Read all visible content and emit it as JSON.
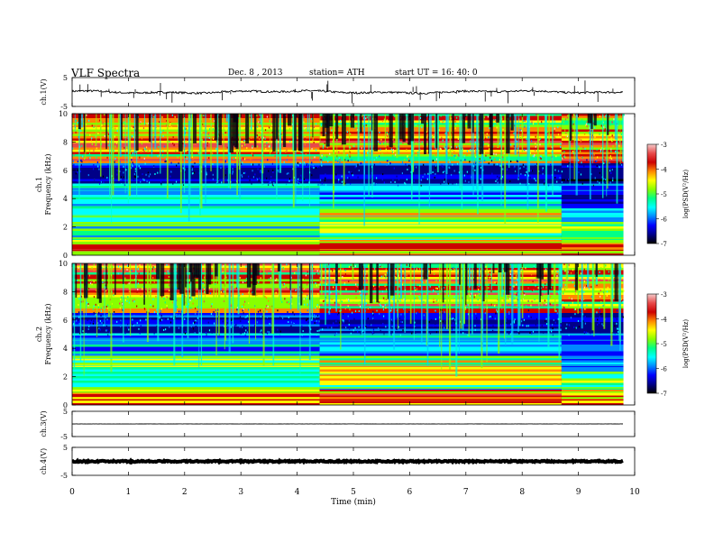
{
  "header": {
    "title": "VLF  Spectra",
    "date": "Dec. 8  , 2013",
    "station": "station= ATH",
    "start": "start  UT  =   16: 40: 0"
  },
  "colorbar": {
    "label": "log(PSD(V²/Hz)",
    "ticks": [
      "-3",
      "-4",
      "-5",
      "-6",
      "-7"
    ],
    "colors": [
      "#f4cccc",
      "#e84a4a",
      "#cc0000",
      "#ff8800",
      "#ffff00",
      "#88ff00",
      "#00ff88",
      "#00ffff",
      "#0088ff",
      "#0000ff",
      "#000088",
      "#000000"
    ]
  },
  "chart_data": [
    {
      "type": "line",
      "ylabel": "ch.1(V)",
      "ylim": [
        -5,
        5
      ],
      "yticks": [
        -5,
        5
      ],
      "xlim": [
        0,
        10
      ],
      "description_values": {
        "baseline": 0,
        "noise_amplitude": 0.7,
        "spike_amplitude": 4
      }
    },
    {
      "type": "heatmap",
      "ylabel": "ch.1\nFrequency  (kHz)",
      "ylim": [
        0,
        10
      ],
      "yticks": [
        0,
        2,
        4,
        6,
        8,
        10
      ],
      "xlim": [
        0,
        10
      ],
      "data_extent_min": 9.8,
      "colorbar_range": [
        -7,
        -3
      ],
      "regime_change_min": [
        4.4,
        8.7
      ]
    },
    {
      "type": "heatmap",
      "ylabel": "ch.2\nFrequency  (kHz)",
      "ylim": [
        0,
        10
      ],
      "yticks": [
        0,
        2,
        4,
        6,
        8,
        10
      ],
      "xlim": [
        0,
        10
      ],
      "data_extent_min": 9.8,
      "colorbar_range": [
        -7,
        -3
      ],
      "regime_change_min": [
        4.4,
        8.7
      ]
    },
    {
      "type": "line",
      "ylabel": "ch.3(V)",
      "ylim": [
        -5,
        5
      ],
      "yticks": [
        -5,
        5
      ],
      "xlim": [
        0,
        10
      ],
      "description_values": {
        "baseline": 0,
        "noise_amplitude": 0.05
      }
    },
    {
      "type": "line",
      "ylabel": "ch.4(V)",
      "ylim": [
        -5,
        5
      ],
      "yticks": [
        -5,
        5
      ],
      "xlim": [
        0,
        10
      ],
      "description_values": {
        "baseline": 0,
        "noise_amplitude": 0.5
      }
    }
  ],
  "xaxis": {
    "label": "Time  (min)",
    "ticks": [
      "0",
      "1",
      "2",
      "3",
      "4",
      "5",
      "6",
      "7",
      "8",
      "9",
      "10"
    ]
  }
}
